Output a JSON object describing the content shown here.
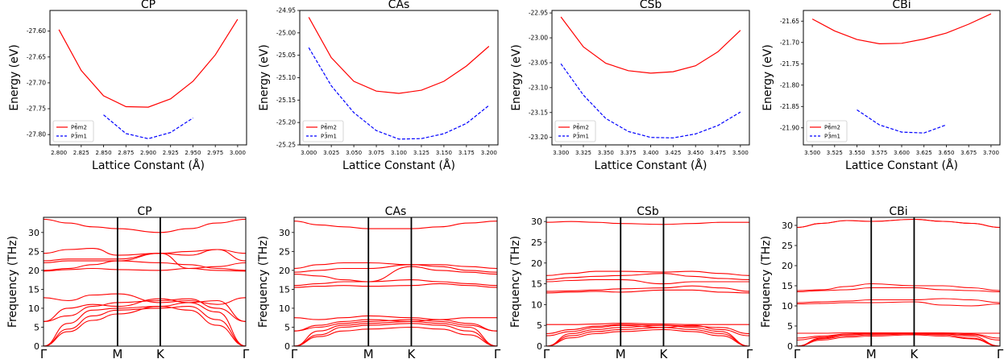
{
  "chart_data": [
    {
      "type": "line",
      "title": "CP",
      "xlabel": "Lattice Constant (Å)",
      "ylabel": "Energy (eV)",
      "xlim": [
        2.79,
        3.01
      ],
      "ylim": [
        -27.82,
        -27.56
      ],
      "xticks": [
        2.8,
        2.825,
        2.85,
        2.875,
        2.9,
        2.925,
        2.95,
        2.975,
        3.0
      ],
      "yticks": [
        -27.8,
        -27.75,
        -27.7,
        -27.65,
        -27.6
      ],
      "xtick_decimals": 3,
      "ytick_decimals": 2,
      "legend_position": "lower-left",
      "series": [
        {
          "name": "P6̄m2",
          "color": "#ff0000",
          "style": "solid",
          "x": [
            2.8,
            2.825,
            2.85,
            2.875,
            2.9,
            2.925,
            2.95,
            2.975,
            3.0
          ],
          "y": [
            -27.597,
            -27.676,
            -27.725,
            -27.746,
            -27.747,
            -27.731,
            -27.697,
            -27.646,
            -27.577
          ]
        },
        {
          "name": "P3̄m1",
          "color": "#0000ff",
          "style": "dashed",
          "x": [
            2.85,
            2.875,
            2.9,
            2.925,
            2.95
          ],
          "y": [
            -27.762,
            -27.798,
            -27.808,
            -27.796,
            -27.768
          ]
        }
      ]
    },
    {
      "type": "line",
      "title": "CAs",
      "xlabel": "Lattice Constant (Å)",
      "ylabel": "Energy (eV)",
      "xlim": [
        2.99,
        3.21
      ],
      "ylim": [
        -25.25,
        -24.95
      ],
      "xticks": [
        3.0,
        3.025,
        3.05,
        3.075,
        3.1,
        3.125,
        3.15,
        3.175,
        3.2
      ],
      "yticks": [
        -25.25,
        -25.2,
        -25.15,
        -25.1,
        -25.05,
        -25.0,
        -24.95
      ],
      "xtick_decimals": 3,
      "ytick_decimals": 2,
      "legend_position": "lower-left",
      "series": [
        {
          "name": "P6̄m2",
          "color": "#ff0000",
          "style": "solid",
          "x": [
            3.0,
            3.025,
            3.05,
            3.075,
            3.1,
            3.125,
            3.15,
            3.175,
            3.2
          ],
          "y": [
            -24.965,
            -25.055,
            -25.108,
            -25.13,
            -25.135,
            -25.128,
            -25.108,
            -25.074,
            -25.03
          ]
        },
        {
          "name": "P3̄m1",
          "color": "#0000ff",
          "style": "dashed",
          "x": [
            3.0,
            3.025,
            3.05,
            3.075,
            3.1,
            3.125,
            3.15,
            3.175,
            3.2
          ],
          "y": [
            -25.033,
            -25.118,
            -25.178,
            -25.218,
            -25.237,
            -25.236,
            -25.225,
            -25.202,
            -25.162
          ]
        }
      ]
    },
    {
      "type": "line",
      "title": "CSb",
      "xlabel": "Lattice Constant (Å)",
      "ylabel": "Energy (eV)",
      "xlim": [
        3.29,
        3.51
      ],
      "ylim": [
        -23.215,
        -22.945
      ],
      "xticks": [
        3.3,
        3.325,
        3.35,
        3.375,
        3.4,
        3.425,
        3.45,
        3.475,
        3.5
      ],
      "yticks": [
        -23.2,
        -23.15,
        -23.1,
        -23.05,
        -23.0,
        -22.95
      ],
      "xtick_decimals": 3,
      "ytick_decimals": 2,
      "legend_position": "lower-left",
      "series": [
        {
          "name": "P6̄m2",
          "color": "#ff0000",
          "style": "solid",
          "x": [
            3.3,
            3.325,
            3.35,
            3.375,
            3.4,
            3.425,
            3.45,
            3.475,
            3.5
          ],
          "y": [
            -22.958,
            -23.018,
            -23.051,
            -23.066,
            -23.071,
            -23.068,
            -23.056,
            -23.028,
            -22.985
          ]
        },
        {
          "name": "P3̄m1",
          "color": "#0000ff",
          "style": "dashed",
          "x": [
            3.3,
            3.325,
            3.35,
            3.375,
            3.4,
            3.425,
            3.45,
            3.475,
            3.5
          ],
          "y": [
            -23.052,
            -23.115,
            -23.162,
            -23.188,
            -23.2,
            -23.201,
            -23.193,
            -23.176,
            -23.149
          ]
        }
      ]
    },
    {
      "type": "line",
      "title": "CBi",
      "xlabel": "Lattice Constant (Å)",
      "ylabel": "Energy (eV)",
      "xlim": [
        3.49,
        3.71
      ],
      "ylim": [
        -21.94,
        -21.625
      ],
      "xticks": [
        3.5,
        3.525,
        3.55,
        3.575,
        3.6,
        3.625,
        3.65,
        3.675,
        3.7
      ],
      "yticks": [
        -21.9,
        -21.85,
        -21.8,
        -21.75,
        -21.7,
        -21.65
      ],
      "xtick_decimals": 3,
      "ytick_decimals": 2,
      "legend_position": "lower-left",
      "series": [
        {
          "name": "P6̄m2",
          "color": "#ff0000",
          "style": "solid",
          "x": [
            3.5,
            3.525,
            3.55,
            3.575,
            3.6,
            3.625,
            3.65,
            3.675,
            3.7
          ],
          "y": [
            -21.645,
            -21.673,
            -21.693,
            -21.703,
            -21.702,
            -21.692,
            -21.678,
            -21.657,
            -21.633
          ]
        },
        {
          "name": "P3̄m1",
          "color": "#0000ff",
          "style": "dashed",
          "x": [
            3.55,
            3.575,
            3.6,
            3.625,
            3.65
          ],
          "y": [
            -21.858,
            -21.893,
            -21.91,
            -21.912,
            -21.893
          ]
        }
      ]
    },
    {
      "type": "line",
      "title": "CP",
      "xlabel": "",
      "ylabel": "Frequency (THz)",
      "ylim": [
        0,
        34
      ],
      "yticks": [
        0,
        5,
        10,
        15,
        20,
        25,
        30
      ],
      "kpoints": [
        "Γ",
        "M",
        "K",
        "Γ"
      ],
      "kpoint_positions": [
        0,
        1,
        1.577,
        2.732
      ],
      "bands": [
        [
          0.0,
          3.8,
          6.8,
          8.5,
          10.5,
          9.5,
          5.5,
          0.0
        ],
        [
          0.0,
          4.5,
          8.0,
          9.5,
          10.0,
          10.5,
          7.0,
          0.0
        ],
        [
          0.0,
          6.0,
          9.5,
          10.0,
          10.5,
          11.5,
          9.0,
          0.0
        ],
        [
          6.5,
          8.0,
          10.5,
          11.5,
          12.0,
          12.5,
          10.0,
          6.5
        ],
        [
          6.5,
          10.0,
          11.0,
          10.5,
          12.5,
          11.5,
          12.0,
          6.5
        ],
        [
          12.8,
          12.0,
          13.5,
          13.8,
          11.5,
          12.0,
          11.0,
          12.8
        ],
        [
          19.8,
          20.2,
          20.5,
          20.2,
          20.0,
          20.5,
          20.0,
          19.8
        ],
        [
          20.0,
          20.5,
          21.5,
          22.5,
          22.0,
          21.5,
          20.5,
          20.0
        ],
        [
          22.0,
          22.5,
          22.5,
          22.5,
          24.5,
          20.5,
          21.0,
          22.0
        ],
        [
          22.5,
          23.0,
          23.0,
          23.0,
          24.5,
          24.0,
          25.5,
          22.5
        ],
        [
          24.5,
          25.5,
          25.8,
          24.0,
          24.5,
          25.0,
          25.5,
          24.5
        ],
        [
          33.5,
          32.5,
          31.5,
          31.0,
          30.0,
          31.0,
          32.5,
          33.5
        ]
      ]
    },
    {
      "type": "line",
      "title": "CAs",
      "xlabel": "",
      "ylabel": "Frequency (THz)",
      "ylim": [
        0,
        34
      ],
      "yticks": [
        0,
        5,
        10,
        15,
        20,
        25,
        30
      ],
      "kpoints": [
        "Γ",
        "M",
        "K",
        "Γ"
      ],
      "kpoint_positions": [
        0,
        1,
        1.577,
        2.732
      ],
      "bands": [
        [
          0.0,
          2.5,
          4.0,
          4.5,
          5.0,
          4.5,
          3.0,
          0.0
        ],
        [
          0.0,
          3.0,
          5.0,
          5.5,
          6.0,
          5.5,
          4.0,
          0.0
        ],
        [
          0.0,
          4.0,
          5.5,
          6.0,
          6.5,
          6.0,
          5.0,
          0.0
        ],
        [
          4.0,
          5.0,
          6.0,
          6.5,
          7.0,
          6.5,
          5.5,
          4.0
        ],
        [
          4.0,
          5.5,
          6.5,
          7.0,
          6.5,
          7.0,
          6.0,
          4.0
        ],
        [
          7.5,
          7.0,
          7.5,
          8.0,
          7.5,
          7.0,
          7.5,
          7.5
        ],
        [
          15.5,
          15.8,
          16.0,
          15.8,
          16.0,
          16.5,
          16.0,
          15.5
        ],
        [
          16.0,
          16.5,
          17.0,
          17.0,
          17.5,
          17.0,
          16.5,
          16.0
        ],
        [
          19.0,
          18.5,
          17.5,
          17.0,
          21.0,
          20.0,
          19.5,
          19.0
        ],
        [
          19.5,
          20.0,
          20.5,
          20.5,
          21.5,
          21.0,
          20.0,
          19.5
        ],
        [
          20.5,
          21.5,
          22.0,
          22.0,
          21.5,
          21.5,
          21.0,
          20.5
        ],
        [
          33.0,
          32.0,
          31.5,
          31.0,
          31.0,
          31.5,
          32.5,
          33.0
        ]
      ]
    },
    {
      "type": "line",
      "title": "CSb",
      "xlabel": "",
      "ylabel": "Frequency (THz)",
      "ylim": [
        0,
        31
      ],
      "yticks": [
        0,
        5,
        10,
        15,
        20,
        25,
        30
      ],
      "kpoints": [
        "Γ",
        "M",
        "K",
        "Γ"
      ],
      "kpoint_positions": [
        0,
        1,
        1.577,
        2.732
      ],
      "bands": [
        [
          0.0,
          2.0,
          3.0,
          3.5,
          4.0,
          3.5,
          2.5,
          0.0
        ],
        [
          0.0,
          2.5,
          3.5,
          4.0,
          4.5,
          4.0,
          3.0,
          0.0
        ],
        [
          0.0,
          3.0,
          4.0,
          4.5,
          5.0,
          4.5,
          3.5,
          0.0
        ],
        [
          2.5,
          3.5,
          4.5,
          5.0,
          4.5,
          5.0,
          4.0,
          2.5
        ],
        [
          3.0,
          4.0,
          4.8,
          5.2,
          5.0,
          4.8,
          4.5,
          3.0
        ],
        [
          5.2,
          5.2,
          5.3,
          5.5,
          5.3,
          5.2,
          5.2,
          5.2
        ],
        [
          12.8,
          13.0,
          13.2,
          13.0,
          13.5,
          13.5,
          13.0,
          12.8
        ],
        [
          13.2,
          13.3,
          13.5,
          13.8,
          14.0,
          14.5,
          14.0,
          13.2
        ],
        [
          15.5,
          15.8,
          16.0,
          16.0,
          15.0,
          15.5,
          15.5,
          15.5
        ],
        [
          16.0,
          16.5,
          16.8,
          17.0,
          17.5,
          16.8,
          16.3,
          16.0
        ],
        [
          17.0,
          17.5,
          18.0,
          18.0,
          17.8,
          18.0,
          17.5,
          17.0
        ],
        [
          29.8,
          30.0,
          29.8,
          29.5,
          29.3,
          29.5,
          29.8,
          29.8
        ]
      ]
    },
    {
      "type": "line",
      "title": "CBi",
      "xlabel": "",
      "ylabel": "Frequency (THz)",
      "ylim": [
        0,
        32
      ],
      "yticks": [
        0,
        5,
        10,
        15,
        20,
        25,
        30
      ],
      "kpoints": [
        "Γ",
        "M",
        "K",
        "Γ"
      ],
      "kpoint_positions": [
        0,
        1,
        1.577,
        2.732
      ],
      "bands": [
        [
          0.0,
          1.5,
          2.2,
          2.5,
          2.8,
          2.5,
          1.8,
          0.0
        ],
        [
          0.0,
          1.8,
          2.5,
          2.8,
          3.0,
          2.8,
          2.0,
          0.0
        ],
        [
          0.0,
          2.0,
          2.8,
          3.0,
          3.2,
          3.0,
          2.5,
          0.0
        ],
        [
          1.5,
          2.2,
          3.0,
          3.2,
          3.0,
          3.2,
          2.8,
          1.5
        ],
        [
          2.0,
          2.5,
          3.0,
          3.3,
          3.2,
          3.0,
          3.0,
          2.0
        ],
        [
          3.2,
          3.2,
          3.3,
          3.3,
          3.3,
          3.3,
          3.2,
          3.2
        ],
        [
          10.5,
          10.6,
          10.8,
          10.8,
          11.0,
          10.2,
          10.0,
          10.5
        ],
        [
          10.8,
          11.0,
          11.2,
          11.5,
          11.5,
          11.8,
          11.5,
          10.8
        ],
        [
          13.5,
          13.8,
          14.0,
          14.5,
          14.5,
          14.0,
          13.8,
          13.5
        ],
        [
          13.8,
          14.0,
          14.8,
          15.5,
          15.0,
          15.0,
          14.5,
          13.8
        ],
        [
          29.5,
          30.5,
          31.2,
          31.0,
          31.5,
          31.0,
          30.5,
          29.5
        ],
        [
          29.5,
          30.5,
          31.2,
          31.0,
          31.5,
          31.0,
          30.5,
          29.5
        ]
      ]
    }
  ]
}
